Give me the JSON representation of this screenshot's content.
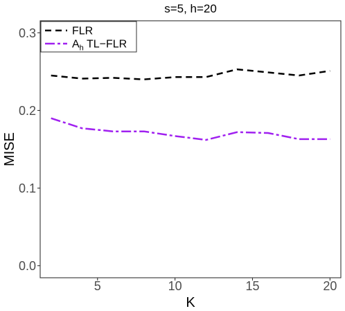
{
  "chart_data": {
    "type": "line",
    "title": "s=5, h=20",
    "xlabel": "K",
    "ylabel": "MISE",
    "xlim": [
      1.3,
      20.7
    ],
    "ylim": [
      -0.0155,
      0.3155
    ],
    "xticks": [
      5,
      10,
      15,
      20
    ],
    "xtick_labels": [
      "5",
      "10",
      "15",
      "20"
    ],
    "yticks": [
      0.0,
      0.1,
      0.2,
      0.3
    ],
    "ytick_labels": [
      "0.0",
      "0.1",
      "0.2",
      "0.3"
    ],
    "grid": false,
    "legend_position": "top-left",
    "x": [
      2,
      4,
      6,
      8,
      10,
      12,
      14,
      16,
      18,
      20
    ],
    "series": [
      {
        "name": "FLR",
        "color": "#000000",
        "dash": "dashed",
        "values": [
          0.245,
          0.241,
          0.242,
          0.24,
          0.243,
          0.243,
          0.253,
          0.249,
          0.245,
          0.251
        ]
      },
      {
        "name": "A_h TL−FLR",
        "name_parts": [
          "A",
          "h",
          " TL−FLR"
        ],
        "color": "#a020f0",
        "dash": "dotdash",
        "values": [
          0.19,
          0.177,
          0.173,
          0.173,
          0.167,
          0.162,
          0.172,
          0.171,
          0.163,
          0.163
        ]
      }
    ]
  }
}
